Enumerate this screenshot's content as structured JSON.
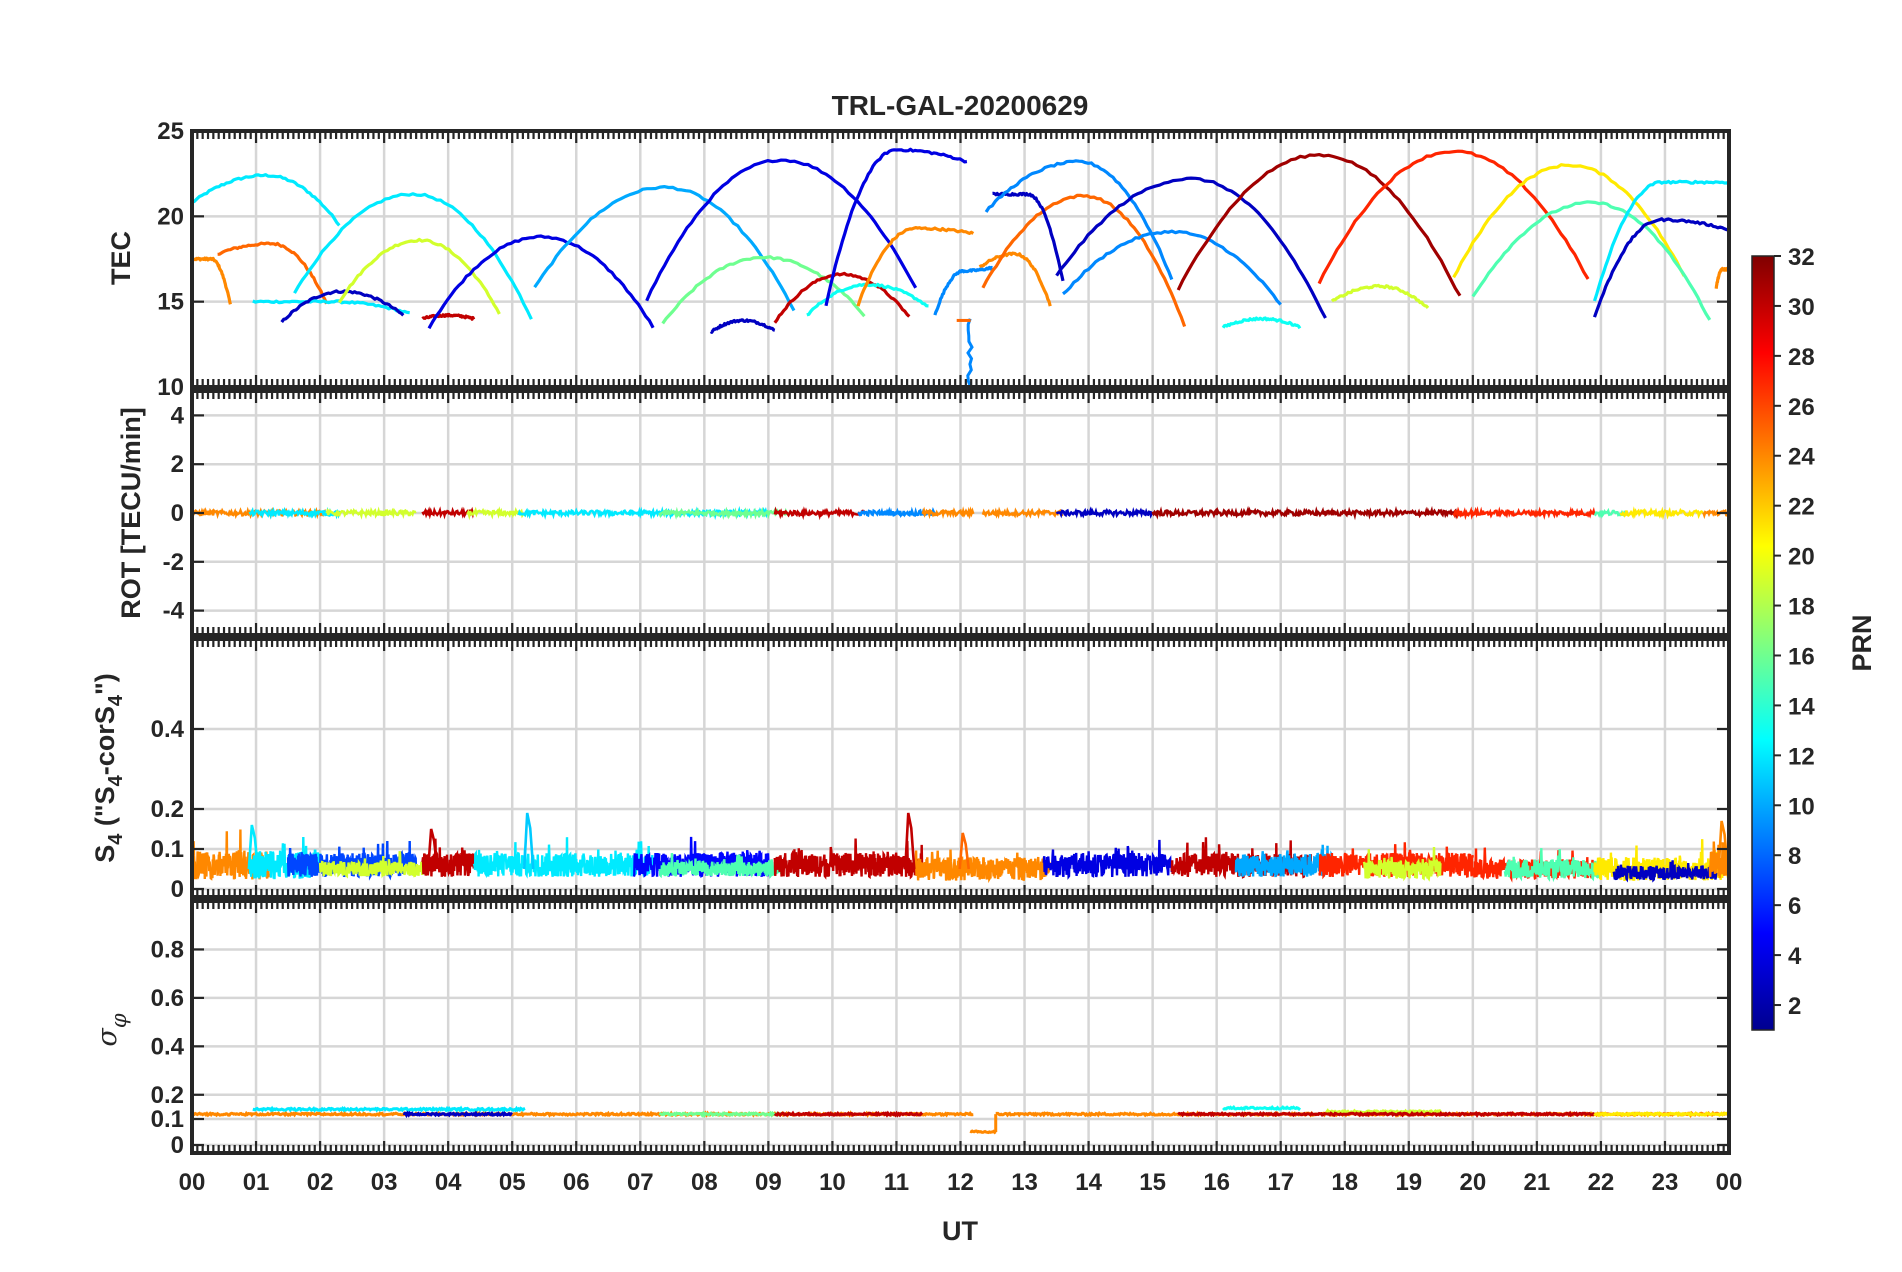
{
  "chart_data": {
    "type": "line",
    "title": "TRL-GAL-20200629",
    "xlabel": "UT",
    "xlim": [
      0,
      24
    ],
    "x_tick_labels": [
      "00",
      "01",
      "02",
      "03",
      "04",
      "05",
      "06",
      "07",
      "08",
      "09",
      "10",
      "11",
      "12",
      "13",
      "14",
      "15",
      "16",
      "17",
      "18",
      "19",
      "20",
      "21",
      "22",
      "23",
      "00"
    ],
    "grid": true,
    "colorbar": {
      "label": "PRN",
      "range": [
        1,
        32
      ],
      "colormap": "jet",
      "tick_labels": [
        "2",
        "4",
        "6",
        "8",
        "10",
        "12",
        "14",
        "16",
        "18",
        "20",
        "22",
        "24",
        "26",
        "28",
        "30",
        "32"
      ],
      "placement": "right"
    },
    "panels": [
      {
        "name": "tec",
        "ylabel": "TEC",
        "ylim": [
          10,
          25
        ],
        "yticks": [
          10,
          15,
          20,
          25
        ],
        "y_tick_labels": [
          "10",
          "15",
          "20",
          "25"
        ],
        "arcs": [
          {
            "prn": 12,
            "start": 0.0,
            "end": 2.3,
            "y0": 20.8,
            "ymax": 22.4,
            "y1": 19.5
          },
          {
            "prn": 24,
            "start": 0.0,
            "end": 0.6,
            "y0": 17.5,
            "ymax": 17.5,
            "y1": 14.8
          },
          {
            "prn": 25,
            "start": 0.4,
            "end": 2.1,
            "y0": 17.8,
            "ymax": 18.4,
            "y1": 14.9
          },
          {
            "prn": 12,
            "start": 0.95,
            "end": 3.4,
            "y0": 15.0,
            "ymax": 15.0,
            "y1": 14.3
          },
          {
            "prn": 3,
            "start": 1.4,
            "end": 3.3,
            "y0": 13.8,
            "ymax": 15.6,
            "y1": 14.2
          },
          {
            "prn": 12,
            "start": 1.6,
            "end": 5.3,
            "y0": 15.5,
            "ymax": 21.3,
            "y1": 14.0
          },
          {
            "prn": 19,
            "start": 2.3,
            "end": 4.8,
            "y0": 15.0,
            "ymax": 18.6,
            "y1": 14.3
          },
          {
            "prn": 30,
            "start": 3.6,
            "end": 4.4,
            "y0": 14.0,
            "ymax": 14.2,
            "y1": 14.0
          },
          {
            "prn": 4,
            "start": 3.7,
            "end": 7.2,
            "y0": 13.5,
            "ymax": 18.8,
            "y1": 13.5
          },
          {
            "prn": 10,
            "start": 5.35,
            "end": 9.4,
            "y0": 15.8,
            "ymax": 21.7,
            "y1": 14.5
          },
          {
            "prn": 16,
            "start": 7.35,
            "end": 10.5,
            "y0": 13.7,
            "ymax": 17.6,
            "y1": 14.2
          },
          {
            "prn": 4,
            "start": 7.1,
            "end": 11.3,
            "y0": 15.1,
            "ymax": 23.3,
            "y1": 15.8
          },
          {
            "prn": 3,
            "start": 8.1,
            "end": 9.1,
            "y0": 13.2,
            "ymax": 13.9,
            "y1": 13.3
          },
          {
            "prn": 30,
            "start": 9.1,
            "end": 11.2,
            "y0": 13.8,
            "ymax": 16.6,
            "y1": 14.1
          },
          {
            "prn": 13,
            "start": 9.6,
            "end": 11.5,
            "y0": 14.2,
            "ymax": 16.0,
            "y1": 14.7
          },
          {
            "prn": 4,
            "start": 9.9,
            "end": 12.1,
            "y0": 14.8,
            "ymax": 23.9,
            "y1": 23.2
          },
          {
            "prn": 24,
            "start": 10.4,
            "end": 12.2,
            "y0": 14.8,
            "ymax": 19.3,
            "y1": 19.0
          },
          {
            "prn": 9,
            "start": 11.6,
            "end": 12.5,
            "y0": 14.2,
            "ymax": 16.8,
            "y1": 17.0
          },
          {
            "prn": 24,
            "start": 12.3,
            "end": 13.4,
            "y0": 17.0,
            "ymax": 17.8,
            "y1": 14.8
          },
          {
            "prn": 25,
            "start": 12.35,
            "end": 15.5,
            "y0": 15.8,
            "ymax": 21.2,
            "y1": 13.6
          },
          {
            "prn": 3,
            "start": 12.5,
            "end": 13.6,
            "y0": 21.3,
            "ymax": 21.3,
            "y1": 16.2
          },
          {
            "prn": 9,
            "start": 12.4,
            "end": 15.3,
            "y0": 20.3,
            "ymax": 23.2,
            "y1": 16.3
          },
          {
            "prn": 9,
            "start": 13.6,
            "end": 17.0,
            "y0": 15.4,
            "ymax": 19.1,
            "y1": 14.8
          },
          {
            "prn": 3,
            "start": 13.5,
            "end": 17.7,
            "y0": 16.5,
            "ymax": 22.2,
            "y1": 14.0
          },
          {
            "prn": 31,
            "start": 15.4,
            "end": 19.8,
            "y0": 15.7,
            "ymax": 23.6,
            "y1": 15.3
          },
          {
            "prn": 13,
            "start": 16.1,
            "end": 17.3,
            "y0": 13.5,
            "ymax": 14.0,
            "y1": 13.5
          },
          {
            "prn": 19,
            "start": 17.8,
            "end": 19.3,
            "y0": 15.0,
            "ymax": 15.9,
            "y1": 14.6
          },
          {
            "prn": 27,
            "start": 17.6,
            "end": 21.8,
            "y0": 16.1,
            "ymax": 23.8,
            "y1": 16.3
          },
          {
            "prn": 21,
            "start": 19.7,
            "end": 23.3,
            "y0": 16.4,
            "ymax": 23.0,
            "y1": 16.5
          },
          {
            "prn": 15,
            "start": 20.0,
            "end": 23.7,
            "y0": 15.3,
            "ymax": 20.8,
            "y1": 13.9
          },
          {
            "prn": 12,
            "start": 21.9,
            "end": 24.0,
            "y0": 15.0,
            "ymax": 22.0,
            "y1": 22.0
          },
          {
            "prn": 3,
            "start": 21.9,
            "end": 24.0,
            "y0": 14.1,
            "ymax": 19.8,
            "y1": 19.2
          },
          {
            "prn": 24,
            "start": 23.8,
            "end": 24.0,
            "y0": 15.8,
            "ymax": 16.9,
            "y1": 16.9
          }
        ],
        "events": [
          {
            "label": "dip",
            "x": 12.15,
            "prn": 9,
            "from": 14.0,
            "to": 10.0
          },
          {
            "label": "gap",
            "x": 12.05,
            "prn": 25,
            "value": 13.9
          }
        ]
      },
      {
        "name": "rot",
        "ylabel": "ROT [TECU/min]",
        "ylim": [
          -5,
          5
        ],
        "yticks": [
          -4,
          -2,
          0,
          2,
          4
        ],
        "y_tick_labels": [
          "-4",
          "-2",
          "0",
          "2",
          "4"
        ],
        "baseline": 0,
        "noise_amplitude": 0.1,
        "segments": [
          {
            "prn": 24,
            "start": 0.0,
            "end": 2.1
          },
          {
            "prn": 12,
            "start": 0.9,
            "end": 2.3
          },
          {
            "prn": 19,
            "start": 2.1,
            "end": 3.5
          },
          {
            "prn": 30,
            "start": 3.6,
            "end": 4.4
          },
          {
            "prn": 19,
            "start": 4.3,
            "end": 5.2
          },
          {
            "prn": 12,
            "start": 5.1,
            "end": 9.0
          },
          {
            "prn": 16,
            "start": 7.3,
            "end": 9.3
          },
          {
            "prn": 30,
            "start": 9.1,
            "end": 10.5
          },
          {
            "prn": 9,
            "start": 10.4,
            "end": 11.6
          },
          {
            "prn": 24,
            "start": 11.4,
            "end": 12.2
          },
          {
            "prn": 24,
            "start": 12.35,
            "end": 13.6
          },
          {
            "prn": 3,
            "start": 13.5,
            "end": 15.0
          },
          {
            "prn": 31,
            "start": 15.0,
            "end": 19.8
          },
          {
            "prn": 27,
            "start": 19.7,
            "end": 21.9
          },
          {
            "prn": 15,
            "start": 21.9,
            "end": 22.4
          },
          {
            "prn": 21,
            "start": 22.3,
            "end": 23.6
          },
          {
            "prn": 24,
            "start": 23.6,
            "end": 24.0
          }
        ]
      },
      {
        "name": "s4",
        "ylabel": "S",
        "ylabel_parts": [
          "S",
          "4",
          " (\"S",
          "4",
          "-corS",
          "4",
          "\")"
        ],
        "ylim": [
          0,
          0.6
        ],
        "yticks": [
          0,
          0.1,
          0.2,
          0.4
        ],
        "y_tick_labels": [
          "0",
          "0.1",
          "0.2",
          "0.4"
        ],
        "noise_segments": [
          {
            "prn": 24,
            "start": 0.0,
            "end": 1.2,
            "base": 0.06,
            "amp": 0.06
          },
          {
            "prn": 12,
            "start": 0.9,
            "end": 2.0,
            "base": 0.06,
            "amp": 0.06
          },
          {
            "prn": 7,
            "start": 1.5,
            "end": 3.5,
            "base": 0.06,
            "amp": 0.05
          },
          {
            "prn": 19,
            "start": 2.0,
            "end": 3.6,
            "base": 0.05,
            "amp": 0.03
          },
          {
            "prn": 30,
            "start": 3.6,
            "end": 4.4,
            "base": 0.06,
            "amp": 0.05
          },
          {
            "prn": 12,
            "start": 4.4,
            "end": 7.2,
            "base": 0.06,
            "amp": 0.05
          },
          {
            "prn": 5,
            "start": 6.9,
            "end": 9.0,
            "base": 0.06,
            "amp": 0.05
          },
          {
            "prn": 15,
            "start": 7.3,
            "end": 9.2,
            "base": 0.05,
            "amp": 0.03
          },
          {
            "prn": 30,
            "start": 9.1,
            "end": 11.4,
            "base": 0.06,
            "amp": 0.05
          },
          {
            "prn": 24,
            "start": 11.3,
            "end": 13.4,
            "base": 0.05,
            "amp": 0.05
          },
          {
            "prn": 4,
            "start": 13.3,
            "end": 15.3,
            "base": 0.06,
            "amp": 0.05
          },
          {
            "prn": 30,
            "start": 15.3,
            "end": 17.5,
            "base": 0.06,
            "amp": 0.05
          },
          {
            "prn": 10,
            "start": 16.3,
            "end": 17.8,
            "base": 0.06,
            "amp": 0.05
          },
          {
            "prn": 27,
            "start": 17.6,
            "end": 20.0,
            "base": 0.06,
            "amp": 0.05
          },
          {
            "prn": 19,
            "start": 18.3,
            "end": 19.5,
            "base": 0.05,
            "amp": 0.04
          },
          {
            "prn": 27,
            "start": 20.0,
            "end": 21.9,
            "base": 0.05,
            "amp": 0.04
          },
          {
            "prn": 15,
            "start": 20.5,
            "end": 22.0,
            "base": 0.05,
            "amp": 0.04
          },
          {
            "prn": 21,
            "start": 21.9,
            "end": 24.0,
            "base": 0.05,
            "amp": 0.05
          },
          {
            "prn": 3,
            "start": 22.2,
            "end": 23.8,
            "base": 0.04,
            "amp": 0.03
          },
          {
            "prn": 24,
            "start": 23.7,
            "end": 24.0,
            "base": 0.06,
            "amp": 0.06
          }
        ],
        "spikes": [
          {
            "x": 0.95,
            "value": 0.16,
            "prn": 12
          },
          {
            "x": 3.75,
            "value": 0.15,
            "prn": 30
          },
          {
            "x": 5.25,
            "value": 0.19,
            "prn": 11
          },
          {
            "x": 11.2,
            "value": 0.19,
            "prn": 30
          },
          {
            "x": 12.05,
            "value": 0.14,
            "prn": 25
          },
          {
            "x": 23.9,
            "value": 0.17,
            "prn": 24
          }
        ]
      },
      {
        "name": "sigma",
        "ylabel": "σ_φ",
        "ylabel_parts": [
          "σ",
          "φ"
        ],
        "ylim": [
          0,
          1
        ],
        "yticks": [
          0,
          0.1,
          0.2,
          0.4,
          0.6,
          0.8
        ],
        "y_tick_labels": [
          "0",
          "0.1",
          "0.2",
          "0.4",
          "0.6",
          "0.8"
        ],
        "segments": [
          {
            "prn": 24,
            "start": 0.0,
            "end": 12.2,
            "value": 0.12
          },
          {
            "prn": 12,
            "start": 0.95,
            "end": 5.2,
            "value": 0.14
          },
          {
            "prn": 3,
            "start": 3.3,
            "end": 5.0,
            "value": 0.12
          },
          {
            "prn": 16,
            "start": 7.3,
            "end": 9.2,
            "value": 0.12
          },
          {
            "prn": 30,
            "start": 9.1,
            "end": 11.4,
            "value": 0.12
          },
          {
            "prn": 24,
            "start": 12.15,
            "end": 12.55,
            "value": 0.05
          },
          {
            "prn": 24,
            "start": 12.55,
            "end": 24.0,
            "value": 0.12
          },
          {
            "prn": 13,
            "start": 16.1,
            "end": 17.3,
            "value": 0.145
          },
          {
            "prn": 19,
            "start": 17.7,
            "end": 19.5,
            "value": 0.13
          },
          {
            "prn": 30,
            "start": 15.4,
            "end": 21.9,
            "value": 0.12
          },
          {
            "prn": 21,
            "start": 21.9,
            "end": 24.0,
            "value": 0.12
          }
        ]
      }
    ]
  }
}
